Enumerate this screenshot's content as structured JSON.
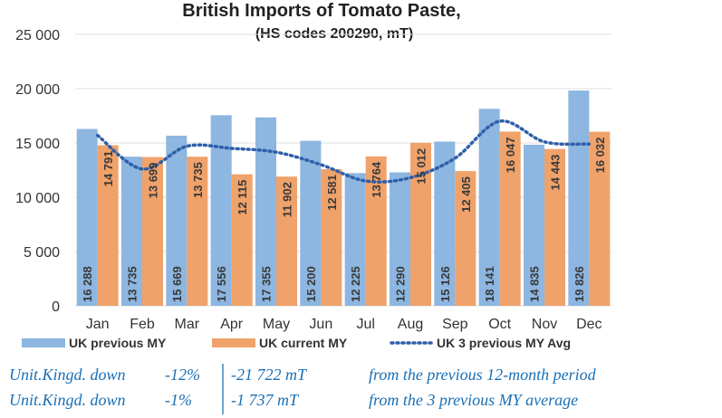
{
  "chart_data": {
    "type": "bar",
    "title": "British Imports of Tomato Paste,",
    "subtitle": "(HS codes 200290, mT)",
    "categories": [
      "Jan",
      "Feb",
      "Mar",
      "Apr",
      "May",
      "Jun",
      "Jul",
      "Aug",
      "Sep",
      "Oct",
      "Nov",
      "Dec"
    ],
    "series": [
      {
        "name": "UK previous MY",
        "kind": "bar",
        "color": "#8db6e0",
        "values": [
          16288,
          13735,
          15669,
          17556,
          17355,
          15200,
          12225,
          12290,
          15126,
          18141,
          14835,
          19826
        ],
        "labels": [
          "16 288",
          "13 735",
          "15 669",
          "17 556",
          "17 355",
          "15 200",
          "12 225",
          "12 290",
          "15 126",
          "18 141",
          "14 835",
          "19 826"
        ]
      },
      {
        "name": "UK current MY",
        "kind": "bar",
        "color": "#f0a26b",
        "values": [
          14791,
          13699,
          13735,
          12115,
          11902,
          12581,
          13764,
          15012,
          12405,
          16047,
          14443,
          16032
        ],
        "labels": [
          "14 791",
          "13 699",
          "13 735",
          "12 115",
          "11 902",
          "12 581",
          "13 764",
          "15 012",
          "12 405",
          "16 047",
          "14 443",
          "16 032"
        ]
      },
      {
        "name": "UK 3 previous MY Avg",
        "kind": "line",
        "style": "dotted",
        "color": "#2e5fa8",
        "values": [
          15700,
          12600,
          14700,
          14500,
          14150,
          13000,
          11500,
          11800,
          13600,
          17000,
          15100,
          14900
        ]
      }
    ],
    "ylim": [
      0,
      25000
    ],
    "yticks": [
      "0",
      "5 000",
      "10 000",
      "15 000",
      "20 000",
      "25 000"
    ],
    "grid": true,
    "legend_position": "bottom"
  },
  "summary": {
    "rows": [
      {
        "label": "Unit.Kingd. down",
        "pct": "-12%",
        "amount": "-21 722  mT",
        "desc": "from the previous 12-month period"
      },
      {
        "label": "Unit.Kingd. down",
        "pct": "-1%",
        "amount": "-1 737  mT",
        "desc": "from the 3 previous MY average"
      }
    ]
  }
}
